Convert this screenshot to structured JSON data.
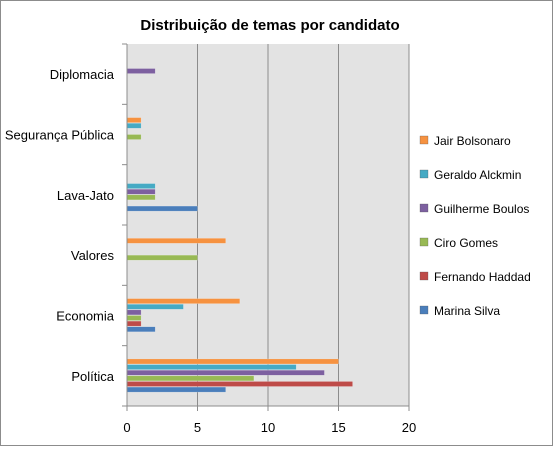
{
  "chart_data": {
    "type": "bar",
    "orientation": "horizontal",
    "title": "Distribuição de temas por candidato",
    "xlabel": "",
    "ylabel": "",
    "categories": [
      "Política",
      "Economia",
      "Valores",
      "Lava-Jato",
      "Segurança Pública",
      "Diplomacia"
    ],
    "x_ticks": [
      "0",
      "5",
      "10",
      "15",
      "20"
    ],
    "xlim": [
      0,
      20
    ],
    "grid": "vertical major gridlines",
    "legend_position": "right",
    "series": [
      {
        "name": "Marina Silva",
        "color": "#4a7ebb",
        "values": [
          7,
          2,
          0,
          5,
          0,
          0
        ]
      },
      {
        "name": "Fernando Haddad",
        "color": "#be4b48",
        "values": [
          16,
          1,
          0,
          0,
          0,
          0
        ]
      },
      {
        "name": "Ciro Gomes",
        "color": "#98b954",
        "values": [
          9,
          1,
          5,
          2,
          1,
          0
        ]
      },
      {
        "name": "Guilherme Boulos",
        "color": "#7d60a0",
        "values": [
          14,
          1,
          0,
          2,
          0,
          2
        ]
      },
      {
        "name": "Geraldo Alckmin",
        "color": "#46aac4",
        "values": [
          12,
          4,
          0,
          2,
          1,
          0
        ]
      },
      {
        "name": "Jair Bolsonaro",
        "color": "#f69240",
        "values": [
          15,
          8,
          7,
          0,
          1,
          0
        ]
      }
    ],
    "legend_order": [
      "Jair Bolsonaro",
      "Geraldo Alckmin",
      "Guilherme Boulos",
      "Ciro Gomes",
      "Fernando Haddad",
      "Marina Silva"
    ]
  }
}
